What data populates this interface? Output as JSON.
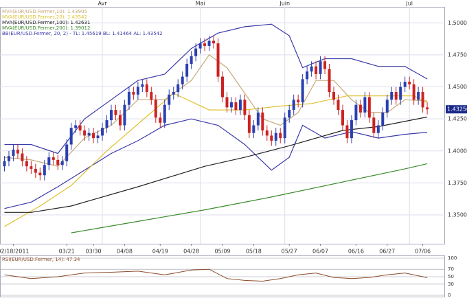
{
  "chart_data": {
    "type": "candlestick",
    "xlim": [
      -1,
      99
    ],
    "ylim": [
      1.3275,
      1.5125
    ],
    "yticks": [
      {
        "value": 1.5,
        "label": "1.5000"
      },
      {
        "value": 1.475,
        "label": "1.4750"
      },
      {
        "value": 1.45,
        "label": "1.4500"
      },
      {
        "value": 1.425,
        "label": "1.4250"
      },
      {
        "value": 1.4,
        "label": "1.4000"
      },
      {
        "value": 1.375,
        "label": "1.3750"
      },
      {
        "value": 1.35,
        "label": "1.3500"
      }
    ],
    "xticks": [
      {
        "value": 2,
        "label": "02/18/2011"
      },
      {
        "value": 14,
        "label": "03/21"
      },
      {
        "value": 20,
        "label": "03/30"
      },
      {
        "value": 27,
        "label": "04/08"
      },
      {
        "value": 35,
        "label": "04/19"
      },
      {
        "value": 42,
        "label": "04/28"
      },
      {
        "value": 49,
        "label": "05/09"
      },
      {
        "value": 56,
        "label": "05/18"
      },
      {
        "value": 64,
        "label": "05/27"
      },
      {
        "value": 71,
        "label": "06/07"
      },
      {
        "value": 79,
        "label": "06/16"
      },
      {
        "value": 86,
        "label": "06/27"
      },
      {
        "value": 94,
        "label": "07/06"
      }
    ],
    "x2ticks": [
      {
        "value": 22,
        "label": "Avr"
      },
      {
        "value": 44,
        "label": "Mai"
      },
      {
        "value": 63,
        "label": "Juin"
      },
      {
        "value": 91,
        "label": "Jul"
      }
    ],
    "grid": true,
    "up_color": "#2a3fb0",
    "down_color": "#cc2222",
    "open": [
      1.388,
      1.392,
      1.396,
      1.401,
      1.398,
      1.392,
      1.388,
      1.386,
      1.383,
      1.381,
      1.389,
      1.395,
      1.393,
      1.389,
      1.392,
      1.405,
      1.418,
      1.42,
      1.416,
      1.412,
      1.414,
      1.41,
      1.412,
      1.418,
      1.424,
      1.432,
      1.428,
      1.42,
      1.436,
      1.446,
      1.444,
      1.45,
      1.452,
      1.446,
      1.44,
      1.426,
      1.422,
      1.436,
      1.444,
      1.446,
      1.452,
      1.458,
      1.468,
      1.474,
      1.48,
      1.484,
      1.482,
      1.486,
      1.484,
      1.458,
      1.442,
      1.434,
      1.438,
      1.432,
      1.44,
      1.428,
      1.414,
      1.42,
      1.43,
      1.416,
      1.412,
      1.408,
      1.414,
      1.41,
      1.426,
      1.432,
      1.44,
      1.438,
      1.456,
      1.462,
      1.466,
      1.46,
      1.47,
      1.464,
      1.446,
      1.44,
      1.432,
      1.42,
      1.41,
      1.424,
      1.436,
      1.43,
      1.442,
      1.426,
      1.414,
      1.42,
      1.43,
      1.44,
      1.446,
      1.44,
      1.45,
      1.454,
      1.452,
      1.44,
      1.446,
      1.434
    ],
    "high": [
      1.396,
      1.4,
      1.405,
      1.405,
      1.402,
      1.396,
      1.392,
      1.39,
      1.387,
      1.393,
      1.399,
      1.399,
      1.397,
      1.396,
      1.409,
      1.422,
      1.424,
      1.424,
      1.42,
      1.418,
      1.418,
      1.416,
      1.422,
      1.428,
      1.436,
      1.436,
      1.432,
      1.44,
      1.45,
      1.45,
      1.454,
      1.456,
      1.456,
      1.45,
      1.444,
      1.43,
      1.44,
      1.448,
      1.45,
      1.456,
      1.462,
      1.472,
      1.478,
      1.484,
      1.488,
      1.488,
      1.49,
      1.49,
      1.488,
      1.462,
      1.446,
      1.442,
      1.442,
      1.444,
      1.444,
      1.432,
      1.424,
      1.434,
      1.434,
      1.42,
      1.416,
      1.418,
      1.418,
      1.43,
      1.436,
      1.444,
      1.444,
      1.46,
      1.466,
      1.47,
      1.47,
      1.474,
      1.474,
      1.468,
      1.45,
      1.444,
      1.436,
      1.424,
      1.428,
      1.44,
      1.44,
      1.446,
      1.446,
      1.43,
      1.424,
      1.434,
      1.444,
      1.45,
      1.45,
      1.454,
      1.458,
      1.458,
      1.456,
      1.45,
      1.45,
      1.438
    ],
    "low": [
      1.384,
      1.388,
      1.392,
      1.394,
      1.388,
      1.384,
      1.382,
      1.379,
      1.377,
      1.377,
      1.385,
      1.389,
      1.385,
      1.385,
      1.388,
      1.401,
      1.414,
      1.412,
      1.408,
      1.408,
      1.406,
      1.406,
      1.408,
      1.414,
      1.42,
      1.424,
      1.416,
      1.416,
      1.432,
      1.44,
      1.44,
      1.446,
      1.442,
      1.436,
      1.422,
      1.418,
      1.418,
      1.432,
      1.44,
      1.442,
      1.448,
      1.454,
      1.464,
      1.47,
      1.476,
      1.478,
      1.478,
      1.48,
      1.454,
      1.438,
      1.43,
      1.43,
      1.428,
      1.428,
      1.424,
      1.41,
      1.41,
      1.416,
      1.412,
      1.408,
      1.404,
      1.404,
      1.406,
      1.406,
      1.422,
      1.428,
      1.434,
      1.434,
      1.452,
      1.458,
      1.456,
      1.456,
      1.46,
      1.442,
      1.436,
      1.428,
      1.416,
      1.406,
      1.406,
      1.42,
      1.426,
      1.426,
      1.422,
      1.41,
      1.41,
      1.416,
      1.426,
      1.436,
      1.436,
      1.436,
      1.446,
      1.448,
      1.436,
      1.436,
      1.43,
      1.4285
    ],
    "close": [
      1.392,
      1.396,
      1.401,
      1.398,
      1.392,
      1.388,
      1.386,
      1.383,
      1.381,
      1.389,
      1.395,
      1.393,
      1.389,
      1.392,
      1.405,
      1.418,
      1.42,
      1.416,
      1.412,
      1.414,
      1.41,
      1.412,
      1.418,
      1.424,
      1.432,
      1.428,
      1.42,
      1.436,
      1.446,
      1.444,
      1.45,
      1.452,
      1.446,
      1.44,
      1.426,
      1.422,
      1.436,
      1.444,
      1.446,
      1.452,
      1.458,
      1.468,
      1.474,
      1.48,
      1.484,
      1.482,
      1.486,
      1.484,
      1.458,
      1.442,
      1.434,
      1.438,
      1.432,
      1.44,
      1.428,
      1.414,
      1.42,
      1.43,
      1.416,
      1.412,
      1.408,
      1.414,
      1.41,
      1.426,
      1.432,
      1.44,
      1.438,
      1.456,
      1.462,
      1.466,
      1.46,
      1.47,
      1.464,
      1.446,
      1.44,
      1.432,
      1.42,
      1.41,
      1.424,
      1.436,
      1.43,
      1.442,
      1.426,
      1.414,
      1.42,
      1.43,
      1.44,
      1.446,
      1.44,
      1.45,
      1.454,
      1.452,
      1.44,
      1.446,
      1.434,
      1.4325
    ],
    "last_price": {
      "value": 1.4325,
      "label": "1.43250"
    },
    "series": [
      {
        "name": "MVA(EUR/USD.Fermer,10): 1.43905",
        "color": "#c8a878",
        "x": [
          0,
          6,
          12,
          18,
          24,
          30,
          36,
          42,
          46,
          50,
          54,
          58,
          62,
          66,
          70,
          74,
          78,
          82,
          86,
          90,
          95
        ],
        "values": [
          1.395,
          1.393,
          1.388,
          1.41,
          1.42,
          1.44,
          1.44,
          1.455,
          1.475,
          1.465,
          1.445,
          1.425,
          1.42,
          1.43,
          1.455,
          1.455,
          1.44,
          1.43,
          1.43,
          1.44,
          1.439
        ]
      },
      {
        "name": "MVA(EUR/USD.Fermer,20): 1.43542",
        "color": "#e0c030",
        "x": [
          0,
          8,
          15,
          23,
          31,
          38,
          46,
          54,
          62,
          69,
          77,
          85,
          92,
          95
        ],
        "values": [
          1.341,
          1.357,
          1.373,
          1.4,
          1.424,
          1.445,
          1.432,
          1.432,
          1.435,
          1.437,
          1.443,
          1.443,
          1.443,
          1.438
        ]
      },
      {
        "name": "MVA(EUR/USD.Fermer,100): 1.42631",
        "color": "#222222",
        "x": [
          0,
          6,
          15,
          30,
          45,
          54,
          64,
          76,
          84,
          95
        ],
        "values": [
          1.352,
          1.352,
          1.357,
          1.372,
          1.388,
          1.395,
          1.404,
          1.416,
          1.419,
          1.4265
        ]
      },
      {
        "name": "MVA(EUR/USD.Fermer,200): 1.39012",
        "color": "#3a8a2a",
        "x": [
          15,
          30,
          45,
          60,
          75,
          90,
          95
        ],
        "values": [
          1.336,
          1.345,
          1.354,
          1.364,
          1.375,
          1.386,
          1.39
        ]
      }
    ],
    "bands": {
      "name": "BB(EUR/USD.Fermer, 20, 2) - TL: 1.45619  BL: 1.41464  AL: 1.43542",
      "color": "#3a3aa8",
      "upper": {
        "x": [
          0,
          6,
          12,
          18,
          24,
          30,
          36,
          42,
          48,
          54,
          60,
          64,
          67,
          72,
          78,
          84,
          90,
          95
        ],
        "values": [
          1.405,
          1.405,
          1.398,
          1.425,
          1.44,
          1.455,
          1.46,
          1.48,
          1.492,
          1.497,
          1.499,
          1.49,
          1.465,
          1.472,
          1.472,
          1.466,
          1.466,
          1.4562
        ]
      },
      "lower": {
        "x": [
          0,
          6,
          12,
          18,
          24,
          30,
          36,
          42,
          48,
          54,
          60,
          64,
          67,
          72,
          78,
          84,
          90,
          95
        ],
        "values": [
          1.355,
          1.36,
          1.372,
          1.385,
          1.398,
          1.408,
          1.42,
          1.425,
          1.42,
          1.405,
          1.385,
          1.395,
          1.42,
          1.41,
          1.415,
          1.41,
          1.413,
          1.4146
        ]
      }
    },
    "rsi": {
      "name": "RSI(EUR/USD.Fermer, 14): 47.34",
      "color": "#8b4a2a",
      "ylim": [
        0,
        100
      ],
      "yticks": [
        0,
        30,
        50,
        70,
        100
      ],
      "x": [
        0,
        6,
        12,
        18,
        24,
        30,
        36,
        42,
        46,
        50,
        54,
        58,
        62,
        66,
        70,
        74,
        78,
        82,
        86,
        90,
        95
      ],
      "values": [
        55,
        45,
        50,
        60,
        62,
        65,
        55,
        68,
        70,
        45,
        40,
        38,
        45,
        55,
        60,
        48,
        45,
        48,
        55,
        60,
        47.34
      ]
    }
  }
}
